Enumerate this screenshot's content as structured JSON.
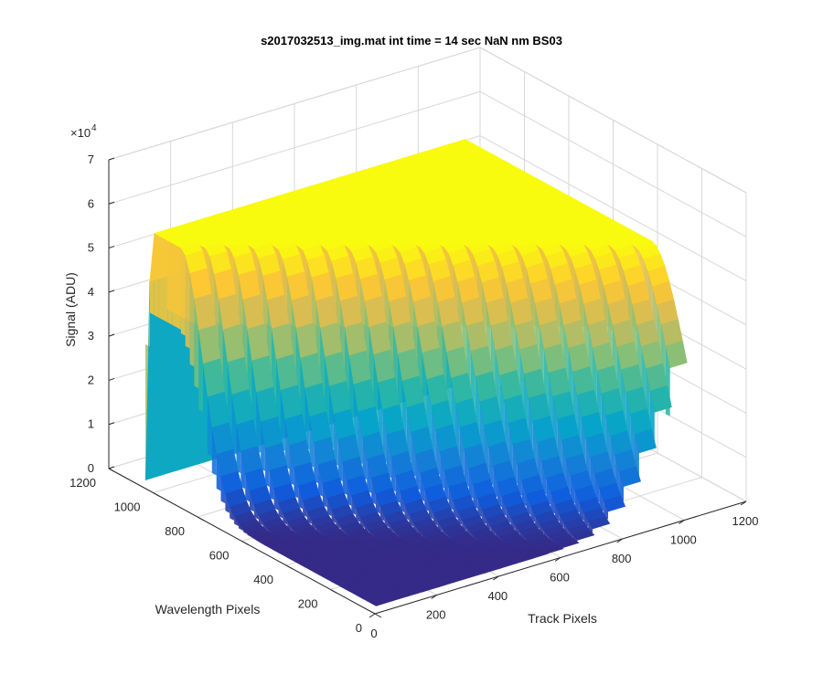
{
  "chart_data": {
    "type": "surface3d",
    "title": "s2017032513_img.mat int time = 14 sec  NaN nm BS03",
    "xlabel": "Track Pixels",
    "ylabel": "Wavelength Pixels",
    "zlabel": "Signal (ADU)",
    "z_exponent_label": "×10",
    "z_exponent_power": "4",
    "xlim": [
      0,
      1200
    ],
    "ylim": [
      0,
      1200
    ],
    "zlim": [
      0,
      70000
    ],
    "x_ticks": [
      "0",
      "200",
      "400",
      "600",
      "800",
      "1000",
      "1200"
    ],
    "y_ticks": [
      "0",
      "200",
      "400",
      "600",
      "800",
      "1000",
      "1200"
    ],
    "z_ticks": [
      "0",
      "1",
      "2",
      "3",
      "4",
      "5",
      "6",
      "7"
    ],
    "grid": true,
    "colormap": "parula",
    "colormap_colors": [
      "#352a87",
      "#0f5cdd",
      "#1481d6",
      "#06a4ca",
      "#2eb7a4",
      "#87bf77",
      "#d1bb59",
      "#fec832",
      "#f9fb0e"
    ],
    "tracks": {
      "count": 20,
      "x_start": 60,
      "x_end": 1010,
      "peak_signal": 57000,
      "wavelength_extent": [
        40,
        1080
      ],
      "descriptor": "Each track is a ridge rising sharply near wavelength pixel 1080, holding a saturated plateau near 57000 ADU for lower-numbered wavelengths on later tracks, and tapering toward 0 ADU at low wavelength pixels."
    }
  }
}
